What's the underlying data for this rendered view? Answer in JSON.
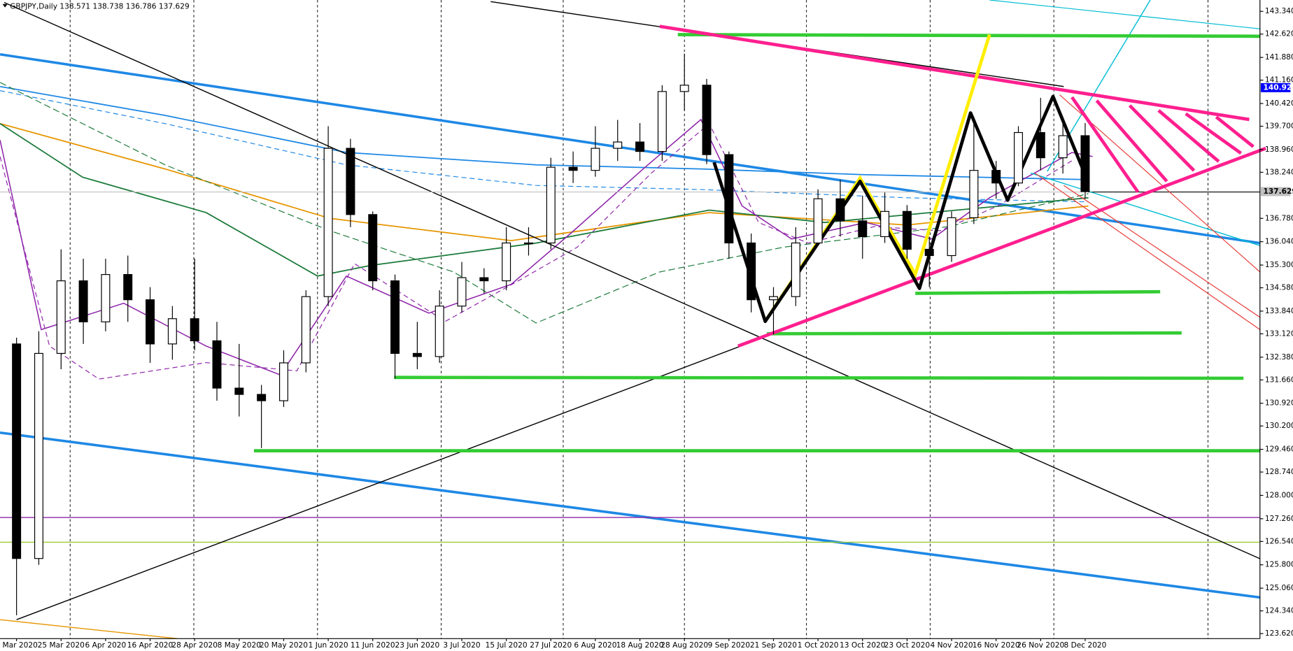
{
  "chart_data": {
    "type": "candlestick",
    "title": "GBPJPY,Daily 138.571 138.738 136.786 137.629",
    "categories": [
      "3 Mar 2020",
      null,
      "25 Mar 2020",
      null,
      "6 Apr 2020",
      null,
      "16 Apr 2020",
      null,
      "28 Apr 2020",
      null,
      "8 May 2020",
      null,
      "20 May 2020",
      null,
      "1 Jun 2020",
      null,
      "11 Jun 2020",
      null,
      "23 Jun 2020",
      null,
      "3 Jul 2020",
      null,
      "15 Jul 2020",
      null,
      "27 Jul 2020",
      null,
      "6 Aug 2020",
      null,
      "18 Aug 2020",
      null,
      "28 Aug 2020",
      null,
      "9 Sep 2020",
      null,
      "21 Sep 2020",
      null,
      "1 Oct 2020",
      null,
      "13 Oct 2020",
      null,
      "23 Oct 2020",
      null,
      "4 Nov 2020",
      null,
      "16 Nov 2020",
      null,
      "26 Nov 2020",
      null,
      "8 Dec 2020"
    ],
    "open": [
      132.8,
      126.0,
      132.5,
      134.8,
      133.5,
      135.0,
      134.2,
      132.8,
      133.6,
      132.9,
      131.4,
      131.2,
      131.0,
      132.2,
      134.3,
      139.0,
      136.9,
      134.8,
      132.5,
      132.4,
      134.0,
      134.9,
      134.8,
      136.0,
      136.0,
      138.4,
      138.3,
      139.0,
      139.2,
      138.9,
      140.8,
      141.0,
      138.8,
      136.0,
      134.2,
      134.3,
      136.0,
      137.4,
      136.7,
      136.2,
      137.0,
      135.8,
      135.6,
      136.8,
      138.3,
      137.9,
      139.5,
      138.7,
      139.4
    ],
    "high": [
      133.0,
      133.2,
      135.8,
      135.5,
      135.5,
      135.6,
      134.6,
      134.0,
      135.5,
      133.5,
      132.8,
      131.5,
      132.6,
      134.5,
      139.7,
      139.3,
      137.0,
      135.0,
      133.5,
      134.5,
      135.4,
      135.2,
      136.5,
      136.5,
      138.7,
      138.9,
      139.7,
      139.9,
      139.8,
      141.0,
      142.0,
      141.2,
      138.9,
      136.3,
      134.6,
      136.5,
      137.7,
      138.0,
      137.5,
      137.6,
      137.2,
      136.2,
      137.0,
      140.0,
      138.6,
      139.7,
      140.6,
      140.0,
      139.8
    ],
    "low": [
      124.2,
      125.8,
      132.0,
      132.8,
      133.2,
      133.5,
      132.2,
      132.3,
      132.6,
      131.0,
      130.5,
      129.5,
      130.8,
      131.9,
      134.0,
      136.5,
      134.5,
      131.7,
      132.0,
      132.2,
      133.8,
      134.4,
      134.5,
      135.6,
      135.8,
      137.9,
      138.1,
      138.6,
      138.6,
      138.6,
      140.2,
      138.5,
      135.5,
      133.8,
      133.1,
      134.0,
      135.9,
      136.2,
      135.5,
      136.0,
      135.5,
      134.6,
      135.4,
      136.6,
      137.4,
      137.8,
      138.3,
      138.2,
      137.4
    ],
    "close": [
      126.0,
      132.5,
      134.8,
      133.5,
      135.0,
      134.2,
      132.8,
      133.6,
      132.9,
      131.4,
      131.2,
      131.0,
      132.2,
      134.3,
      139.0,
      136.9,
      134.8,
      132.5,
      132.4,
      134.0,
      134.9,
      134.8,
      136.0,
      136.0,
      138.4,
      138.3,
      139.0,
      139.2,
      138.9,
      140.8,
      141.0,
      138.8,
      136.0,
      134.2,
      134.3,
      136.0,
      137.4,
      136.7,
      136.2,
      137.0,
      135.8,
      135.6,
      136.8,
      138.3,
      137.9,
      139.5,
      138.7,
      139.4,
      137.629
    ],
    "ylim": [
      123.46,
      143.7
    ],
    "yticks": [
      {
        "value": 143.34,
        "label": "143.340"
      },
      {
        "value": 142.62,
        "label": "142.620"
      },
      {
        "value": 141.88,
        "label": "141.880"
      },
      {
        "value": 141.16,
        "label": "141.160"
      },
      {
        "value": 140.42,
        "label": "140.420"
      },
      {
        "value": 139.7,
        "label": "139.700"
      },
      {
        "value": 138.96,
        "label": "138.960"
      },
      {
        "value": 138.24,
        "label": "138.240"
      },
      {
        "value": 136.78,
        "label": "136.780"
      },
      {
        "value": 136.04,
        "label": "136.040"
      },
      {
        "value": 135.3,
        "label": "135.300"
      },
      {
        "value": 134.58,
        "label": "134.580"
      },
      {
        "value": 133.84,
        "label": "133.840"
      },
      {
        "value": 133.12,
        "label": "133.120"
      },
      {
        "value": 132.38,
        "label": "132.380"
      },
      {
        "value": 131.66,
        "label": "131.660"
      },
      {
        "value": 130.92,
        "label": "130.920"
      },
      {
        "value": 130.2,
        "label": "130.200"
      },
      {
        "value": 129.46,
        "label": "129.460"
      },
      {
        "value": 128.74,
        "label": "128.740"
      },
      {
        "value": 128.0,
        "label": "128.000"
      },
      {
        "value": 127.26,
        "label": "127.260"
      },
      {
        "value": 126.54,
        "label": "126.540"
      },
      {
        "value": 125.8,
        "label": "125.800"
      },
      {
        "value": 125.06,
        "label": "125.060"
      },
      {
        "value": 124.34,
        "label": "124.340"
      },
      {
        "value": 123.62,
        "label": "123.620"
      }
    ],
    "hlines": [
      {
        "value": 140.922,
        "color": "#0000ff",
        "text_color": "#ffffff"
      },
      {
        "value": 137.629,
        "color": "#c0c0c0",
        "text_color": "#000000"
      }
    ],
    "bull_color": "#ffffff",
    "bear_color": "#000000",
    "wick_color": "#000000"
  }
}
